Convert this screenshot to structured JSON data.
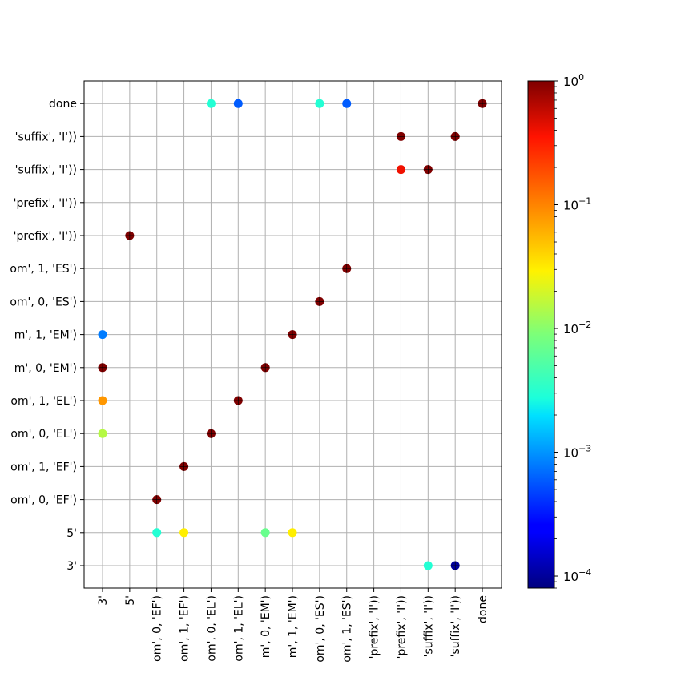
{
  "chart_data": {
    "type": "scatter",
    "grid": true,
    "x_categories": [
      "3'",
      "5'",
      "om', 0, 'EF')",
      "om', 1, 'EF')",
      "om', 0, 'EL')",
      "om', 1, 'EL')",
      "m', 0, 'EM')",
      "m', 1, 'EM')",
      "om', 0, 'ES')",
      "om', 1, 'ES')",
      "'prefix', 'I'))",
      "'prefix', 'I'))",
      "'suffix', 'I'))",
      "'suffix', 'I'))",
      "done"
    ],
    "y_categories": [
      "3'",
      "5'",
      "om', 0, 'EF')",
      "om', 1, 'EF')",
      "om', 0, 'EL')",
      "om', 1, 'EL')",
      "m', 0, 'EM')",
      "m', 1, 'EM')",
      "om', 0, 'ES')",
      "om', 1, 'ES')",
      "'prefix', 'I'))",
      "'prefix', 'I'))",
      "'suffix', 'I'))",
      "'suffix', 'I'))",
      "done"
    ],
    "colorbar": {
      "scale": "log",
      "range": [
        8e-05,
        1
      ],
      "colormap": "jet",
      "tick_values": [
        0.0001,
        0.001,
        0.01,
        0.1,
        1
      ],
      "tick_labels": [
        {
          "base": "10",
          "exp": "−4"
        },
        {
          "base": "10",
          "exp": "−3"
        },
        {
          "base": "10",
          "exp": "−2"
        },
        {
          "base": "10",
          "exp": "−1"
        },
        {
          "base": "10",
          "exp": "0"
        }
      ]
    },
    "points": [
      {
        "x": 4,
        "y": 14,
        "value": 0.003
      },
      {
        "x": 5,
        "y": 14,
        "value": 0.0006
      },
      {
        "x": 8,
        "y": 14,
        "value": 0.003
      },
      {
        "x": 9,
        "y": 14,
        "value": 0.0006
      },
      {
        "x": 14,
        "y": 14,
        "value": 1
      },
      {
        "x": 11,
        "y": 13,
        "value": 1
      },
      {
        "x": 13,
        "y": 13,
        "value": 1
      },
      {
        "x": 11,
        "y": 12,
        "value": 0.4
      },
      {
        "x": 12,
        "y": 12,
        "value": 1
      },
      {
        "x": 1,
        "y": 10,
        "value": 1
      },
      {
        "x": 9,
        "y": 9,
        "value": 1
      },
      {
        "x": 8,
        "y": 8,
        "value": 1
      },
      {
        "x": 0,
        "y": 7,
        "value": 0.0008
      },
      {
        "x": 7,
        "y": 7,
        "value": 1
      },
      {
        "x": 0,
        "y": 6,
        "value": 1
      },
      {
        "x": 6,
        "y": 6,
        "value": 1
      },
      {
        "x": 0,
        "y": 5,
        "value": 0.08
      },
      {
        "x": 5,
        "y": 5,
        "value": 1
      },
      {
        "x": 0,
        "y": 4,
        "value": 0.015
      },
      {
        "x": 4,
        "y": 4,
        "value": 1
      },
      {
        "x": 3,
        "y": 3,
        "value": 1
      },
      {
        "x": 2,
        "y": 2,
        "value": 1
      },
      {
        "x": 2,
        "y": 1,
        "value": 0.003
      },
      {
        "x": 3,
        "y": 1,
        "value": 0.03
      },
      {
        "x": 6,
        "y": 1,
        "value": 0.007
      },
      {
        "x": 7,
        "y": 1,
        "value": 0.03
      },
      {
        "x": 12,
        "y": 0,
        "value": 0.003
      },
      {
        "x": 13,
        "y": 0,
        "value": 0.0001
      }
    ]
  }
}
